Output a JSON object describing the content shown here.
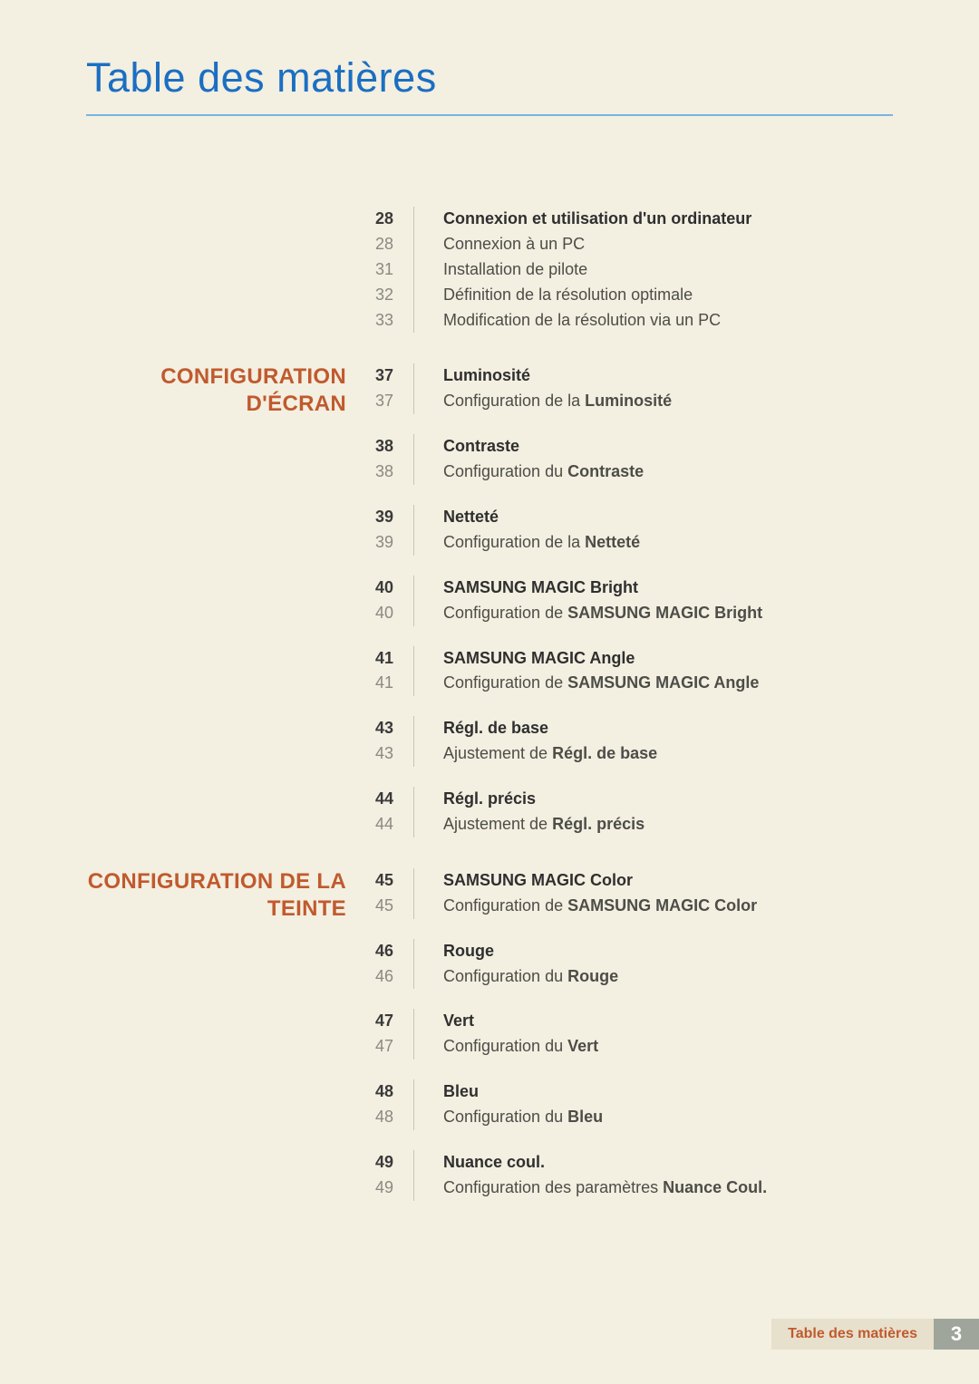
{
  "colors": {
    "page_bg": "#f3efe1",
    "title": "#1b6fc2",
    "title_rule": "#7ab4e2",
    "section_heading": "#c05a2e",
    "page_num_head": "#3a3a3a",
    "page_num_sub": "#8a8a82",
    "text_head": "#2f2f2f",
    "text_sub": "#4d4d48",
    "entry_rule": "#c8c4b6",
    "footer_label_bg": "#e7e0cc",
    "footer_label_text": "#c05a2e",
    "footer_page_bg": "#9fa59a",
    "footer_page_text": "#ffffff"
  },
  "title": "Table des matières",
  "footer": {
    "label": "Table des matières",
    "page": "3"
  },
  "blocks": [
    {
      "heading": "",
      "groups": [
        {
          "entries": [
            {
              "page": "28",
              "kind": "head",
              "parts": [
                {
                  "t": "Connexion et utilisation d'un ordinateur",
                  "b": true
                }
              ]
            },
            {
              "page": "28",
              "kind": "sub",
              "parts": [
                {
                  "t": "Connexion à un PC"
                }
              ]
            },
            {
              "page": "31",
              "kind": "sub",
              "parts": [
                {
                  "t": "Installation de pilote"
                }
              ]
            },
            {
              "page": "32",
              "kind": "sub",
              "parts": [
                {
                  "t": "Définition de la résolution optimale"
                }
              ]
            },
            {
              "page": "33",
              "kind": "sub",
              "parts": [
                {
                  "t": "Modification de la résolution via un PC"
                }
              ]
            }
          ]
        }
      ]
    },
    {
      "heading": "CONFIGURATION D'ÉCRAN",
      "groups": [
        {
          "entries": [
            {
              "page": "37",
              "kind": "head",
              "parts": [
                {
                  "t": "Luminosité",
                  "b": true
                }
              ]
            },
            {
              "page": "37",
              "kind": "sub",
              "parts": [
                {
                  "t": "Configuration de la "
                },
                {
                  "t": "Luminosité",
                  "b": true
                }
              ]
            }
          ]
        },
        {
          "entries": [
            {
              "page": "38",
              "kind": "head",
              "parts": [
                {
                  "t": "Contraste",
                  "b": true
                }
              ]
            },
            {
              "page": "38",
              "kind": "sub",
              "parts": [
                {
                  "t": "Configuration du "
                },
                {
                  "t": "Contraste",
                  "b": true
                }
              ]
            }
          ]
        },
        {
          "entries": [
            {
              "page": "39",
              "kind": "head",
              "parts": [
                {
                  "t": "Netteté",
                  "b": true
                }
              ]
            },
            {
              "page": "39",
              "kind": "sub",
              "parts": [
                {
                  "t": "Configuration de la "
                },
                {
                  "t": "Netteté",
                  "b": true
                }
              ]
            }
          ]
        },
        {
          "entries": [
            {
              "page": "40",
              "kind": "head",
              "parts": [
                {
                  "t": "SAMSUNG MAGIC Bright",
                  "b": true
                }
              ]
            },
            {
              "page": "40",
              "kind": "sub",
              "parts": [
                {
                  "t": "Configuration de "
                },
                {
                  "t": "SAMSUNG MAGIC Bright",
                  "b": true
                }
              ]
            }
          ]
        },
        {
          "entries": [
            {
              "page": "41",
              "kind": "head",
              "parts": [
                {
                  "t": "SAMSUNG MAGIC Angle",
                  "b": true
                }
              ]
            },
            {
              "page": "41",
              "kind": "sub",
              "parts": [
                {
                  "t": "Configuration de "
                },
                {
                  "t": "SAMSUNG MAGIC Angle",
                  "b": true
                }
              ]
            }
          ]
        },
        {
          "entries": [
            {
              "page": "43",
              "kind": "head",
              "parts": [
                {
                  "t": "Régl. de base",
                  "b": true
                }
              ]
            },
            {
              "page": "43",
              "kind": "sub",
              "parts": [
                {
                  "t": "Ajustement de "
                },
                {
                  "t": "Régl. de base",
                  "b": true
                }
              ]
            }
          ]
        },
        {
          "entries": [
            {
              "page": "44",
              "kind": "head",
              "parts": [
                {
                  "t": "Régl. précis",
                  "b": true
                }
              ]
            },
            {
              "page": "44",
              "kind": "sub",
              "parts": [
                {
                  "t": "Ajustement de "
                },
                {
                  "t": "Régl. précis",
                  "b": true
                }
              ]
            }
          ]
        }
      ]
    },
    {
      "heading": "CONFIGURATION DE LA TEINTE",
      "groups": [
        {
          "entries": [
            {
              "page": "45",
              "kind": "head",
              "parts": [
                {
                  "t": "SAMSUNG MAGIC Color",
                  "b": true
                }
              ]
            },
            {
              "page": "45",
              "kind": "sub",
              "parts": [
                {
                  "t": "Configuration de "
                },
                {
                  "t": "SAMSUNG MAGIC Color",
                  "b": true
                }
              ]
            }
          ]
        },
        {
          "entries": [
            {
              "page": "46",
              "kind": "head",
              "parts": [
                {
                  "t": "Rouge",
                  "b": true
                }
              ]
            },
            {
              "page": "46",
              "kind": "sub",
              "parts": [
                {
                  "t": "Configuration du "
                },
                {
                  "t": "Rouge",
                  "b": true
                }
              ]
            }
          ]
        },
        {
          "entries": [
            {
              "page": "47",
              "kind": "head",
              "parts": [
                {
                  "t": "Vert",
                  "b": true
                }
              ]
            },
            {
              "page": "47",
              "kind": "sub",
              "parts": [
                {
                  "t": "Configuration du "
                },
                {
                  "t": "Vert",
                  "b": true
                }
              ]
            }
          ]
        },
        {
          "entries": [
            {
              "page": "48",
              "kind": "head",
              "parts": [
                {
                  "t": "Bleu",
                  "b": true
                }
              ]
            },
            {
              "page": "48",
              "kind": "sub",
              "parts": [
                {
                  "t": "Configuration du "
                },
                {
                  "t": "Bleu",
                  "b": true
                }
              ]
            }
          ]
        },
        {
          "entries": [
            {
              "page": "49",
              "kind": "head",
              "parts": [
                {
                  "t": "Nuance coul.",
                  "b": true
                }
              ]
            },
            {
              "page": "49",
              "kind": "sub",
              "parts": [
                {
                  "t": "Configuration des paramètres "
                },
                {
                  "t": "Nuance Coul.",
                  "b": true
                }
              ]
            }
          ]
        }
      ]
    }
  ]
}
